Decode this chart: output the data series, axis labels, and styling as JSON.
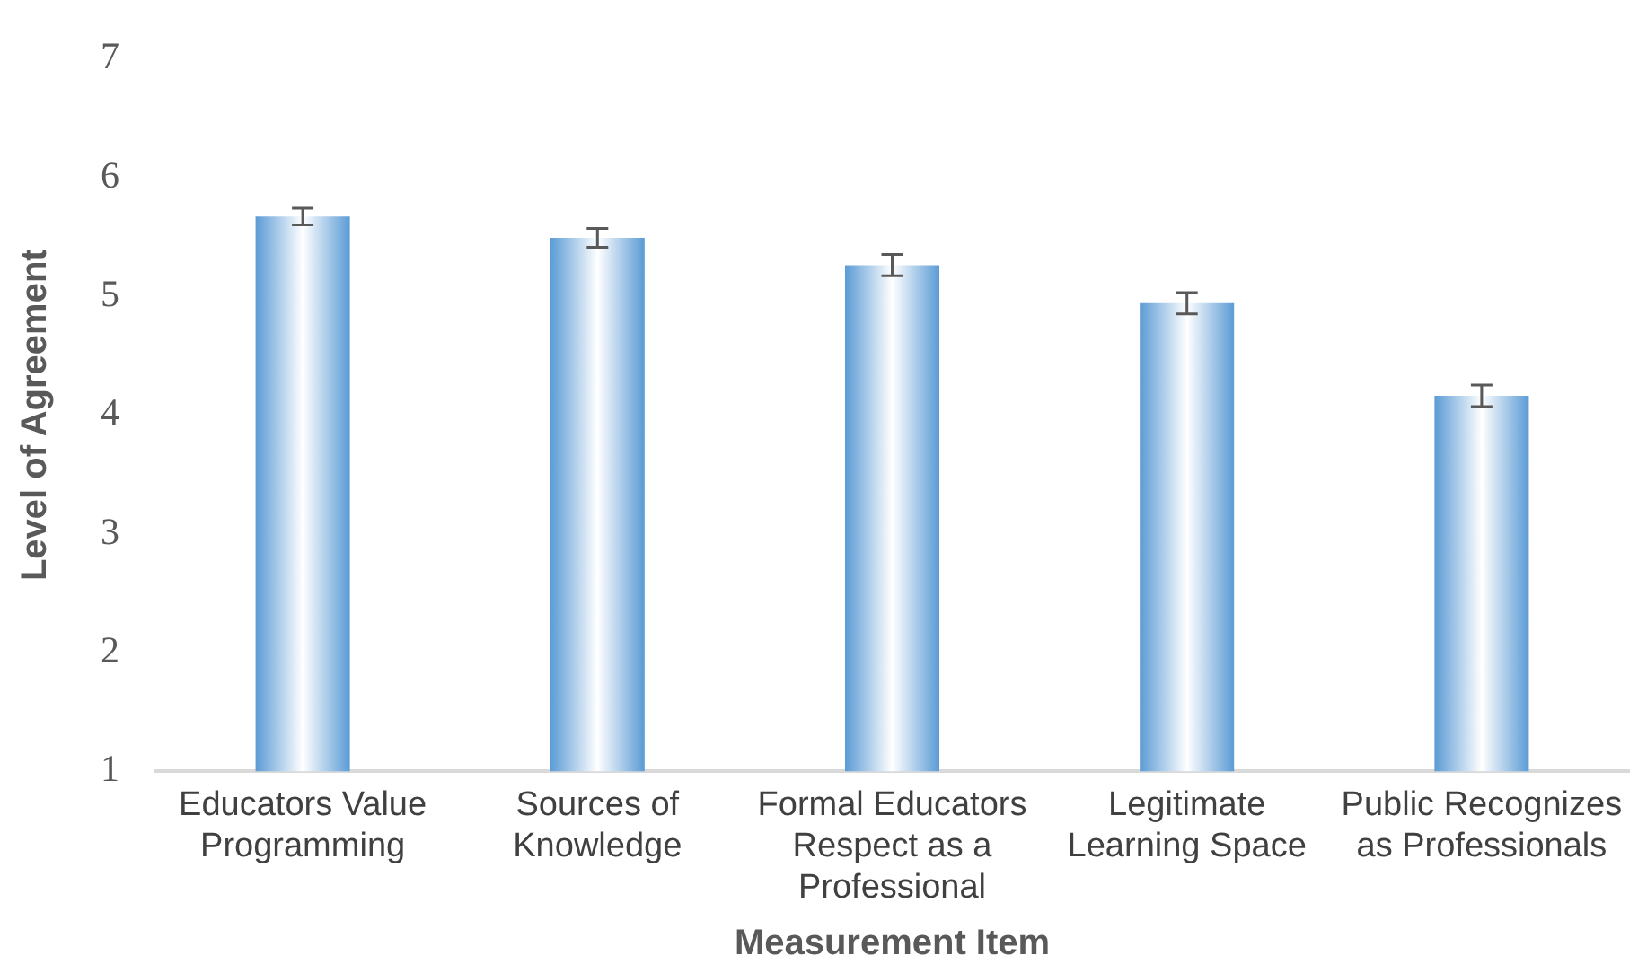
{
  "chart_data": {
    "type": "bar",
    "xlabel": "Measurement Item",
    "ylabel": "Level of Agreement",
    "categories": [
      "Educators Value Programming",
      "Sources of Knowledge",
      "Formal Educators Respect as a Professional",
      "Legitimate Learning Space",
      "Public Recognizes as Professionals"
    ],
    "values": [
      5.67,
      5.49,
      5.26,
      4.94,
      4.16
    ],
    "errors": [
      0.07,
      0.08,
      0.09,
      0.09,
      0.09
    ],
    "color": "#5b9bd5",
    "ylim": [
      1,
      7
    ],
    "yticks": [
      1,
      2,
      3,
      4,
      5,
      6,
      7
    ],
    "grid": false,
    "legend": false
  }
}
